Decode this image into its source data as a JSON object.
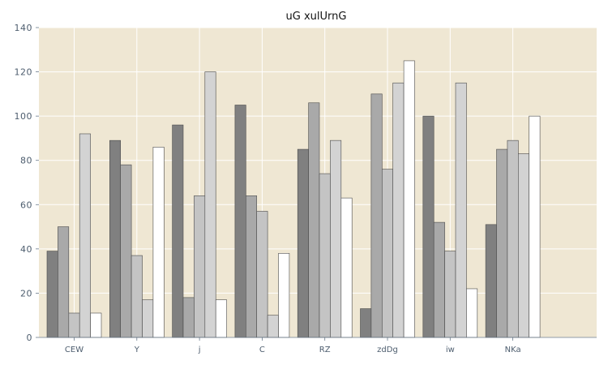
{
  "chart_data": {
    "type": "bar",
    "title": "uG xulUrnG",
    "xlabel": "",
    "ylabel": "",
    "categories": [
      "CEW",
      "Y",
      "j",
      "C",
      "RZ",
      "zdDg",
      "iw",
      "NKa"
    ],
    "ylim": [
      0,
      140
    ],
    "yticks": [
      0,
      20,
      40,
      60,
      80,
      100,
      120,
      140
    ],
    "grid": true,
    "legend": "none",
    "series": [
      {
        "values": [
          39,
          89,
          96,
          105,
          85,
          13,
          100,
          51
        ],
        "color": "#808080"
      },
      {
        "values": [
          50,
          78,
          18,
          64,
          106,
          110,
          52,
          85
        ],
        "color": "#a9a9a9"
      },
      {
        "values": [
          11,
          37,
          64,
          57,
          74,
          76,
          39,
          89
        ],
        "color": "#c4c4c4"
      },
      {
        "values": [
          92,
          17,
          120,
          10,
          89,
          115,
          115,
          83
        ],
        "color": "#d3d3d3"
      },
      {
        "values": [
          11,
          86,
          17,
          38,
          63,
          125,
          22,
          100
        ],
        "color": "#ffffff"
      }
    ],
    "plot_background": "#efe7d3",
    "grid_color": "#ffffff"
  }
}
